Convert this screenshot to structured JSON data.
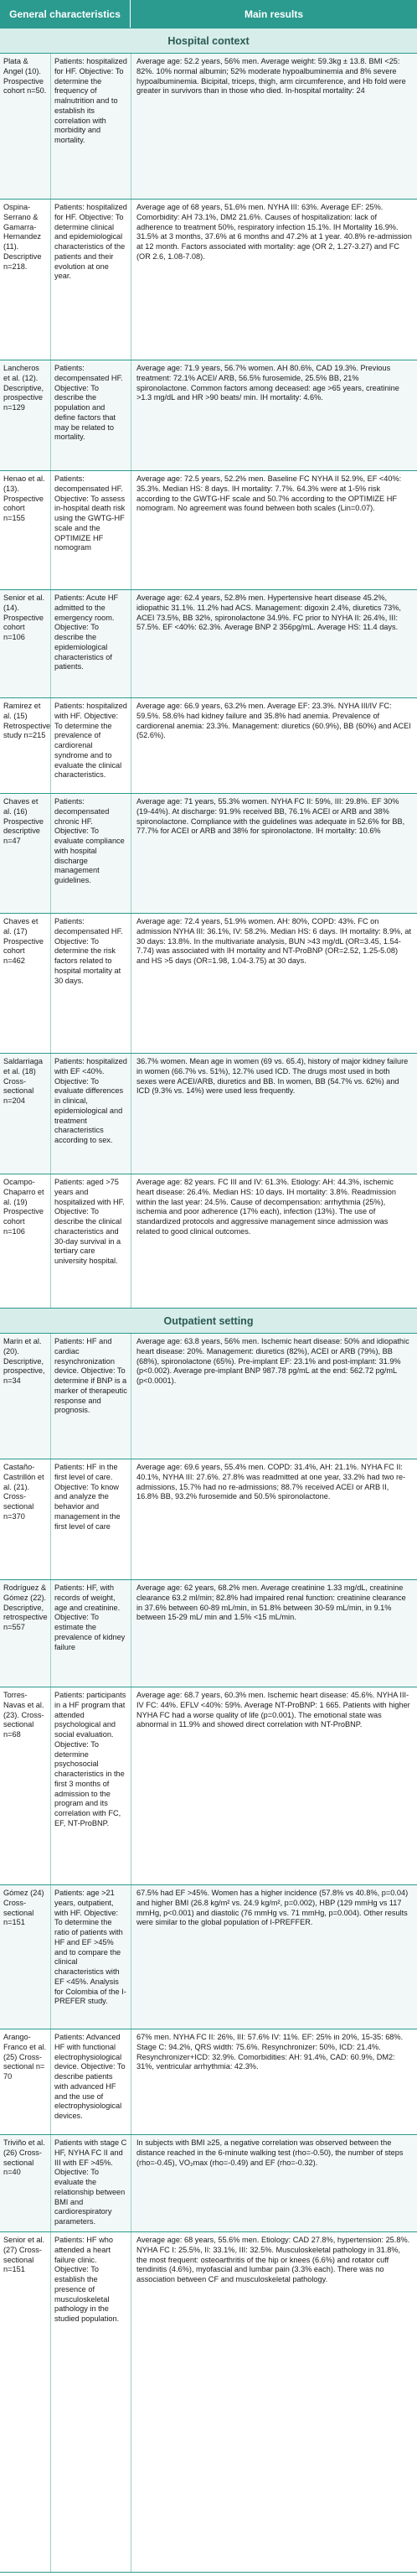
{
  "header": {
    "col1": "General characteristics",
    "col2": "Main results"
  },
  "sections": {
    "hospital": "Hospital context",
    "outpatient": "Outpatient setting"
  },
  "rows": [
    {
      "study": "Plata & Angel (10). Prospective cohort n=50.",
      "objective": "Patients: hospitalized for HF. Objective: To determine the frequency of malnutrition and to establish its correlation with morbidity and mortality.",
      "results": "Average age: 52.2 years, 56% men. Average weight: 59.3kg ± 13.8. BMI <25: 82%. 10% normal albumin; 52% moderate hypoalbuminemia and 8% severe hypoalbuminemia. Bicipital, triceps, thigh, arm circumference, and Hb fold were greater in survivors than in those who died. In-hospital mortality: 24"
    },
    {
      "study": "Ospina-Serrano & Gamarra-Hernandez (11). Descriptive n=218.",
      "objective": "Patients: hospitalized for HF. Objective: To determine clinical and epidemiological characteristics of the patients and their evolution at one year.",
      "results": "Average age of 68 years, 51.6% men. NYHA III: 63%. Average EF: 25%. Comorbidity: AH 73.1%, DM2 21.6%. Causes of hospitalization: lack of adherence to treatment 50%, respiratory infection 15.1%. IH Mortality 16.9%. 31.5% at 3 months, 37.6% at 6 months and 47.2% at 1 year. 40.8% re-admission at 12 month. Factors associated with mortality: age (OR 2, 1.27-3.27) and FC (OR 2.6, 1.08-7.08)."
    },
    {
      "study": "Lancheros et al. (12). Descriptive, prospective n=129",
      "objective": "Patients: decompensated HF. Objective: To describe the population and define factors that may be related to mortality.",
      "results": "Average age: 71.9 years, 56.7% women. AH 80.6%, CAD 19.3%. Previous treatment: 72.1% ACEI/ ARB, 56.5% furosemide, 25.5% BB, 21% spironolactone. Common factors among deceased: age >65 years, creatinine >1.3 mg/dL and HR >90 beats/ min. IH mortality: 4.6%."
    },
    {
      "study": "Henao et al. (13). Prospective cohort n=155",
      "objective": "Patients: decompensated HF. Objective: To assess in-hospital death risk using the GWTG-HF scale and the OPTIMIZE HF nomogram",
      "results": "Average age: 72.5 years, 52.2% men. Baseline FC NYHA II 52.9%, EF <40%: 35.3%. Median HS: 8 days. IH mortality: 7.7%. 64.3% were at 1-5% risk according to the GWTG-HF scale and 50.7% according to the OPTIMIZE HF nomogram. No agreement was found between both scales (Lin=0.07)."
    },
    {
      "study": "Senior et al. (14). Prospective cohort n=106",
      "objective": "Patients: Acute HF admitted to the emergency room. Objective: To describe the epidemiological characteristics of patients.",
      "results": "Average age: 62.4 years, 52.8% men. Hypertensive heart disease 45.2%, idiopathic 31.1%. 11.2% had ACS. Management: digoxin 2.4%, diuretics 73%, ACEI 73.5%, BB 32%, spironolactone 34.9%. FC prior to NYHA II: 26.4%, III: 57.5%. EF <40%: 62.3%. Average BNP 2 356pg/mL. Average HS: 11.4 days."
    },
    {
      "study": "Ramirez et al. (15) Retrospective study n=215",
      "objective": "Patients: hospitalized with HF. Objective: To determine the prevalence of cardiorenal syndrome and to evaluate the clinical characteristics.",
      "results": "Average age: 66.9 years, 63.2% men. Average EF: 23.3%. NYHA III/IV FC: 59.5%. 58.6% had kidney failure and 35.8% had anemia. Prevalence of cardiorenal anemia: 23.3%. Management: diuretics (60.9%), BB (60%) and ACEI (52.6%)."
    },
    {
      "study": "Chaves et al. (16) Prospective descriptive n=47",
      "objective": "Patients: decompensated chronic HF. Objective: To evaluate compliance with hospital discharge management guidelines.",
      "results": "Average age: 71 years, 55.3% women. NYHA FC II: 59%, III: 29.8%. EF 30% (19-44%). At discharge: 91.9% received BB, 76.1% ACEI or ARB and 38% spironolactone. Compliance with the guidelines was adequate in 52.6% for BB, 77.7% for ACEI or ARB and 38% for spironolactone. IH mortality: 10.6%"
    },
    {
      "study": "Chaves et al. (17) Prospective cohort n=462",
      "objective": "Patients: decompensated HF. Objective: To determine the risk factors related to hospital mortality at 30 days.",
      "results": "Average age: 72.4 years, 51.9% women. AH: 80%, COPD: 43%. FC on admission NYHA III: 36.1%, IV: 58.2%. Median HS: 6 days. IH mortality: 8.9%, at 30 days: 13.8%. In the multivariate analysis, BUN >43 mg/dL (OR=3.45, 1.54-7.74) was associated with IH mortality and NT-ProBNP (OR=2.52, 1.25-5.08) and HS >5 days (OR=1.98, 1.04-3.75) at 30 days."
    },
    {
      "study": "Saldarriaga et al. (18) Cross-sectional n=204",
      "objective": "Patients: hospitalized with EF <40%. Objective: To evaluate differences in clinical, epidemiological and treatment characteristics according to sex.",
      "results": "36.7% women. Mean age in women (69 vs. 65.4), history of major kidney failure in women (66.7% vs. 51%), 12.7% used ICD. The drugs most used in both sexes were ACEI/ARB, diuretics and BB. In women, BB (54.7% vs. 62%) and ICD (9.3% vs. 14%) were used less frequently."
    },
    {
      "study": "Ocampo-Chaparro et al. (19) Prospective cohort n=106",
      "objective": "Patients: aged >75 years and hospitalized with HF. Objective: To describe the clinical characteristics and 30-day survival in a tertiary care university hospital.",
      "results": "Average age: 82 years. FC III and IV: 61.3%. Etiology: AH: 44.3%, ischemic heart disease: 26.4%. Median HS: 10 days. IH mortality: 3.8%. Readmission within the last year: 24.5%. Cause of decompensation: arrhythmia (25%), ischemia and poor adherence (17% each), infection (13%). The use of standardized protocols and aggressive management since admission was related to good clinical outcomes."
    },
    {
      "study": "Marin et al. (20). Descriptive, prospective, n=34",
      "objective": "Patients: HF and cardiac resynchronization device. Objective: To determine if BNP is a marker of therapeutic response and prognosis.",
      "results": "Average age: 63.8 years, 56% men. Ischemic heart disease: 50% and idiopathic heart disease: 20%. Management: diuretics (82%), ACEI or ARB (79%), BB (68%), spironolactone (65%). Pre-implant EF: 23.1% and post-implant: 31.9% (p<0.002). Average pre-implant BNP 987.78 pg/mL at the end: 562.72 pg/mL (p<0.0001)."
    },
    {
      "study": "Castaño-Castrillón et al. (21). Cross-sectional n=370",
      "objective": "Patients: HF in the first level of care. Objective: To know and analyze the behavior and management in the first level of care",
      "results": "Average age: 69.6 years, 55.4% men. COPD: 31.4%, AH: 21.1%. NYHA FC II: 40.1%, NYHA III: 27.6%. 27.8% was readmitted at one year, 33.2% had two re-admissions, 15.7% had no re-admissions; 88.7% received ACEI or ARB II, 16.8% BB, 93.2% furosemide and 50.5% spironolactone."
    },
    {
      "study": "Rodríguez & Gómez (22). Descriptive, retrospective n=557",
      "objective": "Patients: HF, with records of weight, age and creatinine. Objective: To estimate the prevalence of kidney failure",
      "results": "Average age: 62 years, 68.2% men. Average creatinine 1.33 mg/dL, creatinine clearance 63.2 ml/min; 82.8% had impaired renal function: creatinine clearance in 37.6% between 60-89 mL/min, in 51.8% between 30-59 mL/min, in 9.1% between 15-29 mL/ min and 1.5% <15 mL/min."
    },
    {
      "study": "Torres-Navas et al. (23). Cross-sectional n=68",
      "objective": "Patients: participants in a HF program that attended psychological and social evaluation. Objective: To determine psychosocial characteristics in the first 3 months of admission to the program and its correlation with FC, EF, NT-ProBNP.",
      "results": "Average age: 68.7 years, 60.3% men. Ischemic heart disease: 45.6%. NYHA III-IV FC: 44%. EFLV <40%: 59%. Average NT-ProBNP: 1 665. Patients with higher NYHA FC had a worse quality of life (p=0.001). The emotional state was abnormal in 11.9% and showed direct correlation with NT-ProBNP."
    },
    {
      "study": "Gómez (24) Cross-sectional n=151",
      "objective": "Patients: age >21 years, outpatient, with HF. Objective: To determine the ratio of patients with HF and EF >45% and to compare the clinical characteristics with EF <45%. Analysis for Colombia of the I-PREFER study.",
      "results": "67.5% had EF >45%. Women has a higher incidence (57.8% vs 40.8%, p=0.04) and higher BMI (26.8 kg/m² vs. 24.9 kg/m², p=0.002), HBP (129 mmHg vs 117 mmHg, p<0.001) and diastolic (76 mmHg vs. 71 mmHg, p=0.004). Other results were similar to the global population of I-PREFFER."
    },
    {
      "study": "Arango-Franco et al. (25) Cross-sectional n= 70",
      "objective": "Patients: Advanced HF with functional electrophysiological device. Objective: To describe patients with advanced HF and the use of electrophysiological devices.",
      "results": "67% men. NYHA FC II: 26%, III: 57.6% IV: 11%. EF: 25% in 20%, 15-35: 68%. Stage C: 94.2%, QRS width: 75.6%. Resynchronizer: 50%, ICD: 21.4%. Resynchronizer+ICD: 32.9%. Comorbidities: AH: 91.4%, CAD: 60.9%, DM2: 31%, ventricular arrhythmia: 42.3%."
    },
    {
      "study": "Triviño et al. (26) Cross-sectional n=40",
      "objective": "Patients with stage C HF, NYHA FC II and III with EF >45%. Objective: To evaluate the relationship between BMI and cardiorespiratory parameters.",
      "results": "In subjects with BMI ≥25, a negative correlation was observed between the distance reached in the 6-minute walking test (rho=-0.50), the number of steps (rho=-0.45), VO₂max (rho=-0.49) and EF (rho=-0.32)."
    },
    {
      "study": "Senior et al. (27) Cross-sectional n=151",
      "objective": "Patients: HF who attended a heart failure clinic. Objective: To establish the presence of musculoskeletal pathology in the studied population.",
      "results": "Average age: 68 years, 55.6% men. Etiology: CAD 27.8%, hypertension: 25.8%. NYHA FC I: 25.5%, II: 33.1%, III: 32.5%. Musculoskeletal pathology in 31.8%, the most frequent: osteoarthritis of the hip or knees (6.6%) and rotator cuff tendinitis (4.6%), myofascial and lumbar pain (3.3% each). There was no association between CF and musculoskeletal pathology."
    }
  ]
}
